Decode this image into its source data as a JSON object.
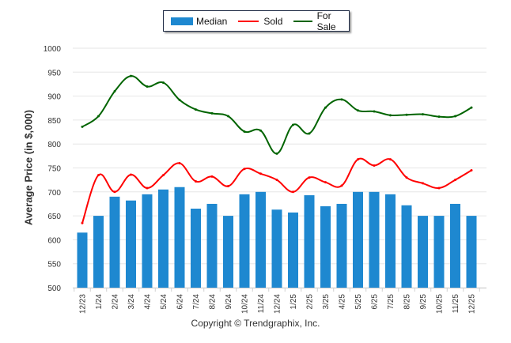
{
  "chart_data": {
    "type": "bar",
    "title": "",
    "xlabel": "",
    "ylabel": "Average Price (in $,000)",
    "ylim": [
      500,
      1000
    ],
    "yticks": [
      500,
      550,
      600,
      650,
      700,
      750,
      800,
      850,
      900,
      950,
      1000
    ],
    "grid": true,
    "legend_position": "top-center",
    "categories": [
      "12/23",
      "1/24",
      "2/24",
      "3/24",
      "4/24",
      "5/24",
      "6/24",
      "7/24",
      "8/24",
      "9/24",
      "10/24",
      "11/24",
      "12/24",
      "1/25",
      "2/25",
      "3/25",
      "4/25",
      "5/25",
      "6/25",
      "7/25",
      "8/25",
      "9/25",
      "10/25",
      "11/25",
      "12/25"
    ],
    "series": [
      {
        "name": "Median",
        "type": "bar",
        "color": "#1e88d0",
        "values": [
          615,
          650,
          690,
          682,
          695,
          705,
          710,
          665,
          675,
          650,
          695,
          700,
          663,
          657,
          693,
          670,
          675,
          700,
          700,
          695,
          672,
          650,
          650,
          675,
          650
        ]
      },
      {
        "name": "Sold",
        "type": "line",
        "color": "#ff0000",
        "values": [
          635,
          735,
          700,
          736,
          708,
          735,
          760,
          722,
          732,
          712,
          748,
          738,
          725,
          700,
          730,
          720,
          713,
          768,
          755,
          768,
          730,
          718,
          708,
          725,
          745
        ]
      },
      {
        "name": "For Sale",
        "type": "line",
        "color": "#006400",
        "values": [
          836,
          858,
          910,
          942,
          920,
          928,
          892,
          872,
          864,
          858,
          826,
          828,
          780,
          840,
          822,
          876,
          893,
          870,
          868,
          860,
          861,
          862,
          857,
          858,
          876
        ]
      }
    ]
  },
  "legend": {
    "median": "Median",
    "sold": "Sold",
    "for_sale": "For Sale"
  },
  "footer": {
    "copyright": "Copyright © Trendgraphix, Inc."
  }
}
